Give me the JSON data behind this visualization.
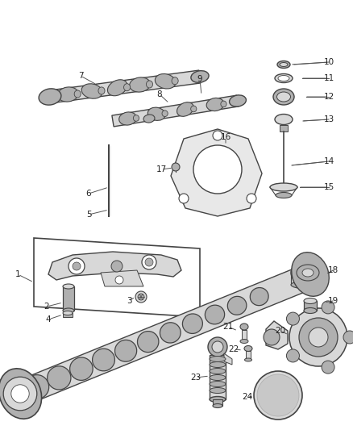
{
  "bg": "#ffffff",
  "lc": "#444444",
  "lw": 1.0,
  "fs": 7.5,
  "figw": 4.38,
  "figh": 5.33,
  "dpi": 100
}
